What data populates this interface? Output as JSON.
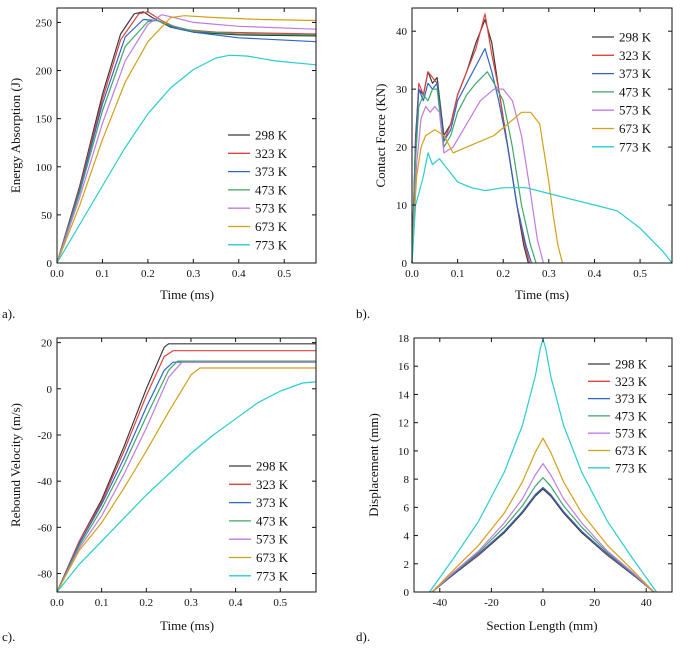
{
  "figure": {
    "temperature_labels": [
      "298 K",
      "323 K",
      "373 K",
      "473 K",
      "573 K",
      "673 K",
      "773 K"
    ],
    "colors": [
      "#3a3a3a",
      "#e0413f",
      "#2f67c7",
      "#3fa66a",
      "#c27be0",
      "#d4a017",
      "#28cdd0"
    ]
  },
  "chart_data": [
    {
      "id": "a",
      "panel_label": "a).",
      "type": "line",
      "title": "",
      "xlabel": "Time (ms)",
      "ylabel": "Energy Absorption (J)",
      "xlim": [
        0,
        0.57
      ],
      "ylim": [
        0,
        265
      ],
      "xticks": [
        0.0,
        0.1,
        0.2,
        0.3,
        0.4,
        0.5
      ],
      "xtick_labels": [
        "0.0",
        "0.1",
        "0.2",
        "0.3",
        "0.4",
        "0.5"
      ],
      "yticks": [
        0,
        50,
        100,
        150,
        200,
        250
      ],
      "ytick_labels": [
        "0",
        "50",
        "100",
        "150",
        "200",
        "250"
      ],
      "legend_position": "bottom-right",
      "series": [
        {
          "name": "298 K",
          "x": [
            0,
            0.05,
            0.1,
            0.14,
            0.17,
            0.19,
            0.21,
            0.25,
            0.3,
            0.4,
            0.57
          ],
          "y": [
            0,
            80,
            175,
            238,
            259,
            261,
            255,
            245,
            240,
            237,
            236
          ]
        },
        {
          "name": "323 K",
          "x": [
            0,
            0.05,
            0.1,
            0.14,
            0.18,
            0.2,
            0.23,
            0.27,
            0.35,
            0.45,
            0.57
          ],
          "y": [
            0,
            78,
            170,
            232,
            259,
            261,
            252,
            243,
            240,
            239,
            238
          ]
        },
        {
          "name": "373 K",
          "x": [
            0,
            0.05,
            0.1,
            0.15,
            0.19,
            0.22,
            0.26,
            0.3,
            0.4,
            0.57
          ],
          "y": [
            0,
            76,
            165,
            235,
            253,
            252,
            244,
            240,
            234,
            230
          ]
        },
        {
          "name": "473 K",
          "x": [
            0,
            0.05,
            0.1,
            0.15,
            0.2,
            0.22,
            0.25,
            0.3,
            0.4,
            0.57
          ],
          "y": [
            0,
            73,
            158,
            225,
            251,
            252,
            247,
            241,
            238,
            237
          ]
        },
        {
          "name": "573 K",
          "x": [
            0,
            0.05,
            0.1,
            0.15,
            0.2,
            0.23,
            0.25,
            0.3,
            0.4,
            0.57
          ],
          "y": [
            0,
            68,
            145,
            210,
            248,
            258,
            256,
            250,
            246,
            243
          ]
        },
        {
          "name": "673 K",
          "x": [
            0,
            0.05,
            0.1,
            0.15,
            0.2,
            0.25,
            0.28,
            0.35,
            0.45,
            0.57
          ],
          "y": [
            0,
            60,
            128,
            188,
            230,
            255,
            257,
            255,
            253,
            252
          ]
        },
        {
          "name": "773 K",
          "x": [
            0,
            0.05,
            0.1,
            0.15,
            0.2,
            0.25,
            0.3,
            0.35,
            0.38,
            0.42,
            0.48,
            0.57
          ],
          "y": [
            0,
            40,
            80,
            120,
            155,
            182,
            201,
            213,
            216,
            215,
            210,
            206
          ]
        }
      ]
    },
    {
      "id": "b",
      "panel_label": "b).",
      "type": "line",
      "title": "",
      "xlabel": "Time (ms)",
      "ylabel": "Contact Force (KN)",
      "xlim": [
        0,
        0.57
      ],
      "ylim": [
        0,
        44
      ],
      "xticks": [
        0.0,
        0.1,
        0.2,
        0.3,
        0.4,
        0.5
      ],
      "xtick_labels": [
        "0.0",
        "0.1",
        "0.2",
        "0.3",
        "0.4",
        "0.5"
      ],
      "yticks": [
        0,
        10,
        20,
        30,
        40
      ],
      "ytick_labels": [
        "0",
        "10",
        "20",
        "30",
        "40"
      ],
      "legend_position": "top-right",
      "series": [
        {
          "name": "298 K",
          "x": [
            0,
            0.008,
            0.015,
            0.025,
            0.035,
            0.045,
            0.055,
            0.07,
            0.085,
            0.1,
            0.12,
            0.14,
            0.16,
            0.175,
            0.19,
            0.21,
            0.23,
            0.245,
            0.255
          ],
          "y": [
            0,
            22,
            30,
            29,
            33,
            31,
            32,
            22,
            24,
            29,
            33,
            38,
            42,
            38,
            30,
            20,
            10,
            3,
            0
          ]
        },
        {
          "name": "323 K",
          "x": [
            0,
            0.008,
            0.015,
            0.025,
            0.035,
            0.045,
            0.055,
            0.07,
            0.085,
            0.1,
            0.12,
            0.14,
            0.16,
            0.175,
            0.19,
            0.21,
            0.23,
            0.248,
            0.258
          ],
          "y": [
            0,
            21,
            31,
            29,
            33,
            32,
            31,
            21,
            24,
            29,
            33,
            37,
            43,
            36,
            30,
            20,
            10,
            3,
            0
          ]
        },
        {
          "name": "373 K",
          "x": [
            0,
            0.008,
            0.015,
            0.025,
            0.035,
            0.045,
            0.055,
            0.07,
            0.085,
            0.1,
            0.12,
            0.14,
            0.16,
            0.175,
            0.19,
            0.21,
            0.23,
            0.25,
            0.262
          ],
          "y": [
            0,
            20,
            30,
            28,
            31,
            30,
            31,
            21,
            23,
            28,
            31,
            34,
            37,
            33,
            28,
            20,
            10,
            3,
            0
          ]
        },
        {
          "name": "473 K",
          "x": [
            0,
            0.008,
            0.015,
            0.025,
            0.035,
            0.045,
            0.055,
            0.07,
            0.085,
            0.1,
            0.12,
            0.14,
            0.165,
            0.18,
            0.2,
            0.22,
            0.24,
            0.26,
            0.272
          ],
          "y": [
            0,
            18,
            27,
            29,
            28,
            30,
            30,
            20,
            22,
            26,
            29,
            31,
            33,
            31,
            28,
            20,
            10,
            3,
            0
          ]
        },
        {
          "name": "573 K",
          "x": [
            0,
            0.01,
            0.02,
            0.03,
            0.04,
            0.05,
            0.06,
            0.07,
            0.09,
            0.12,
            0.15,
            0.18,
            0.2,
            0.22,
            0.24,
            0.26,
            0.275,
            0.288
          ],
          "y": [
            0,
            17,
            25,
            27,
            26,
            27,
            26,
            19,
            20,
            24,
            28,
            30,
            30,
            28,
            22,
            12,
            4,
            0
          ]
        },
        {
          "name": "673 K",
          "x": [
            0,
            0.01,
            0.02,
            0.03,
            0.05,
            0.07,
            0.09,
            0.12,
            0.15,
            0.18,
            0.21,
            0.24,
            0.26,
            0.28,
            0.3,
            0.31,
            0.32,
            0.33
          ],
          "y": [
            0,
            15,
            20,
            22,
            23,
            22,
            19,
            20,
            21,
            22,
            24,
            26,
            26,
            24,
            14,
            8,
            3,
            0
          ]
        },
        {
          "name": "773 K",
          "x": [
            0,
            0.008,
            0.015,
            0.025,
            0.035,
            0.045,
            0.06,
            0.08,
            0.1,
            0.13,
            0.16,
            0.2,
            0.25,
            0.3,
            0.35,
            0.4,
            0.45,
            0.5,
            0.55,
            0.57
          ],
          "y": [
            0,
            10,
            12,
            15,
            19,
            17,
            18,
            16,
            14,
            13,
            12.5,
            13,
            13,
            12,
            11,
            10,
            9,
            6,
            2,
            0
          ]
        }
      ]
    },
    {
      "id": "c",
      "panel_label": "c).",
      "type": "line",
      "title": "",
      "xlabel": "Time (ms)",
      "ylabel": "Rebound Velocity (m/s)",
      "xlim": [
        0,
        0.58
      ],
      "ylim": [
        -88,
        22
      ],
      "xticks": [
        0.0,
        0.1,
        0.2,
        0.3,
        0.4,
        0.5
      ],
      "xtick_labels": [
        "0.0",
        "0.1",
        "0.2",
        "0.3",
        "0.4",
        "0.5"
      ],
      "yticks": [
        -80,
        -60,
        -40,
        -20,
        0,
        20
      ],
      "ytick_labels": [
        "-80",
        "-60",
        "-40",
        "-20",
        "0",
        "20"
      ],
      "legend_position": "bottom-right",
      "series": [
        {
          "name": "298 K",
          "x": [
            0,
            0.05,
            0.1,
            0.15,
            0.2,
            0.24,
            0.25,
            0.58
          ],
          "y": [
            -88,
            -66,
            -48,
            -25,
            0,
            18,
            19.5,
            19.5
          ]
        },
        {
          "name": "323 K",
          "x": [
            0,
            0.05,
            0.1,
            0.15,
            0.2,
            0.24,
            0.26,
            0.58
          ],
          "y": [
            -88,
            -66,
            -49,
            -27,
            -3,
            14,
            16.5,
            16.5
          ]
        },
        {
          "name": "373 K",
          "x": [
            0,
            0.05,
            0.1,
            0.15,
            0.2,
            0.24,
            0.26,
            0.58
          ],
          "y": [
            -88,
            -67,
            -50,
            -30,
            -8,
            8,
            11.5,
            11.5
          ]
        },
        {
          "name": "473 K",
          "x": [
            0,
            0.05,
            0.1,
            0.15,
            0.2,
            0.25,
            0.27,
            0.58
          ],
          "y": [
            -88,
            -68,
            -52,
            -33,
            -12,
            8,
            12,
            12
          ]
        },
        {
          "name": "573 K",
          "x": [
            0,
            0.05,
            0.1,
            0.15,
            0.2,
            0.25,
            0.28,
            0.58
          ],
          "y": [
            -88,
            -69,
            -55,
            -37,
            -17,
            5,
            11.5,
            11.5
          ]
        },
        {
          "name": "673 K",
          "x": [
            0,
            0.05,
            0.1,
            0.15,
            0.2,
            0.25,
            0.3,
            0.32,
            0.58
          ],
          "y": [
            -88,
            -70,
            -58,
            -43,
            -27,
            -10,
            6,
            9,
            9
          ]
        },
        {
          "name": "773 K",
          "x": [
            0,
            0.05,
            0.1,
            0.15,
            0.2,
            0.25,
            0.3,
            0.35,
            0.4,
            0.45,
            0.5,
            0.55,
            0.58
          ],
          "y": [
            -88,
            -76,
            -66,
            -56,
            -46,
            -37,
            -28,
            -20,
            -13,
            -6,
            -1,
            2.5,
            3
          ]
        }
      ]
    },
    {
      "id": "d",
      "panel_label": "d).",
      "type": "line",
      "title": "",
      "xlabel": "Section Length (mm)",
      "ylabel": "Displacement (mm)",
      "xlim": [
        -50,
        50
      ],
      "ylim": [
        0,
        18
      ],
      "xticks": [
        -40,
        -20,
        0,
        20,
        40
      ],
      "xtick_labels": [
        "-40",
        "-20",
        "0",
        "20",
        "40"
      ],
      "yticks": [
        0,
        2,
        4,
        6,
        8,
        10,
        12,
        14,
        16,
        18
      ],
      "ytick_labels": [
        "0",
        "2",
        "4",
        "6",
        "8",
        "10",
        "12",
        "14",
        "16",
        "18"
      ],
      "legend_position": "top-right",
      "series": [
        {
          "name": "298 K",
          "x": [
            -43,
            -35,
            -25,
            -15,
            -8,
            -3,
            0,
            3,
            8,
            15,
            25,
            35,
            43
          ],
          "y": [
            0,
            1.2,
            2.6,
            4.2,
            5.6,
            6.8,
            7.3,
            6.8,
            5.6,
            4.2,
            2.6,
            1.2,
            0
          ]
        },
        {
          "name": "323 K",
          "x": [
            -43,
            -35,
            -25,
            -15,
            -8,
            -3,
            0,
            3,
            8,
            15,
            25,
            35,
            43
          ],
          "y": [
            0,
            1.25,
            2.65,
            4.3,
            5.7,
            6.9,
            7.4,
            6.9,
            5.7,
            4.3,
            2.65,
            1.25,
            0
          ]
        },
        {
          "name": "373 K",
          "x": [
            -43,
            -35,
            -25,
            -15,
            -8,
            -3,
            0,
            3,
            8,
            15,
            25,
            35,
            43
          ],
          "y": [
            0,
            1.25,
            2.7,
            4.3,
            5.7,
            6.9,
            7.4,
            6.9,
            5.7,
            4.3,
            2.7,
            1.25,
            0
          ]
        },
        {
          "name": "473 K",
          "x": [
            -43,
            -35,
            -25,
            -15,
            -8,
            -3,
            0,
            3,
            8,
            15,
            25,
            35,
            43
          ],
          "y": [
            0,
            1.3,
            2.8,
            4.6,
            6.1,
            7.5,
            8.1,
            7.5,
            6.1,
            4.6,
            2.8,
            1.3,
            0
          ]
        },
        {
          "name": "573 K",
          "x": [
            -43,
            -35,
            -25,
            -15,
            -8,
            -3,
            0,
            3,
            8,
            15,
            25,
            35,
            43
          ],
          "y": [
            0,
            1.35,
            2.9,
            4.9,
            6.6,
            8.3,
            9.1,
            8.3,
            6.6,
            4.9,
            2.9,
            1.35,
            0
          ]
        },
        {
          "name": "673 K",
          "x": [
            -43,
            -35,
            -25,
            -15,
            -8,
            -3,
            0,
            3,
            8,
            15,
            25,
            35,
            43
          ],
          "y": [
            0,
            1.5,
            3.3,
            5.6,
            7.8,
            9.9,
            10.9,
            9.9,
            7.8,
            5.6,
            3.3,
            1.5,
            0
          ]
        },
        {
          "name": "773 K",
          "x": [
            -44,
            -35,
            -25,
            -15,
            -8,
            -3,
            -1,
            0,
            1,
            3,
            8,
            15,
            25,
            35,
            44
          ],
          "y": [
            0,
            2.3,
            5.0,
            8.5,
            11.8,
            15.3,
            17.3,
            17.9,
            17.3,
            15.3,
            11.8,
            8.5,
            5.0,
            2.3,
            0
          ]
        }
      ]
    }
  ]
}
